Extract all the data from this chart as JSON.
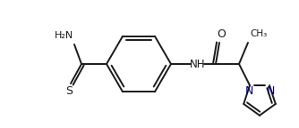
{
  "bg_color": "#ffffff",
  "line_color": "#1a1a1a",
  "blue_color": "#000080",
  "lw": 1.4,
  "figsize": [
    3.34,
    1.44
  ],
  "dpi": 100,
  "xlim": [
    0,
    334
  ],
  "ylim": [
    0,
    144
  ]
}
